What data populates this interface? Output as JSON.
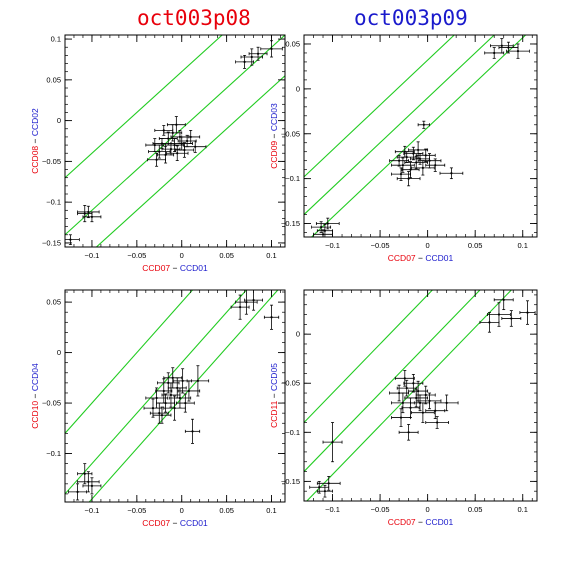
{
  "colors": {
    "red": "#e8000b",
    "blue": "#1a1acc",
    "green": "#22cc22",
    "ink": "#000000"
  },
  "titles": [
    {
      "text": "oct003p08",
      "color": "#e8000b"
    },
    {
      "text": "oct003p09",
      "color": "#1a1acc"
    }
  ],
  "chart_data": [
    {
      "type": "scatter",
      "xlabel": {
        "a": "CCD07",
        "sep": "−",
        "b": "CCD01"
      },
      "ylabel": {
        "a": "CCD08",
        "sep": "−",
        "b": "CCD02"
      },
      "xlim": [
        -0.13,
        0.115
      ],
      "ylim": [
        -0.155,
        0.105
      ],
      "xticks": [
        -0.1,
        -0.05,
        0,
        0.05,
        0.1
      ],
      "xtick_labels": [
        "−0.1",
        "−0.05",
        "0",
        "0.05",
        "0.1"
      ],
      "yticks": [
        -0.15,
        -0.1,
        -0.05,
        0,
        0.05,
        0.1
      ],
      "ytick_labels": [
        "−0.15",
        "−0.1",
        "−0.05",
        "0",
        "0.05",
        "0.1"
      ],
      "lines": [
        {
          "slope": 1,
          "intercept": 0.06
        },
        {
          "slope": 1,
          "intercept": -0.01
        },
        {
          "slope": 1,
          "intercept": -0.06
        }
      ],
      "points": [
        [
          -0.124,
          -0.146,
          0.01,
          0.006
        ],
        [
          -0.108,
          -0.114,
          0.008,
          0.01
        ],
        [
          -0.104,
          -0.112,
          0.012,
          0.007
        ],
        [
          -0.1,
          -0.118,
          0.01,
          0.006
        ],
        [
          -0.03,
          -0.03,
          0.01,
          0.008
        ],
        [
          -0.025,
          -0.038,
          0.012,
          0.008
        ],
        [
          -0.022,
          -0.028,
          0.01,
          0.006
        ],
        [
          -0.018,
          -0.042,
          0.009,
          0.01
        ],
        [
          -0.015,
          -0.022,
          0.01,
          0.008
        ],
        [
          -0.012,
          -0.035,
          0.01,
          0.007
        ],
        [
          -0.01,
          -0.015,
          0.01,
          0.01
        ],
        [
          -0.008,
          -0.03,
          0.01,
          0.008
        ],
        [
          -0.005,
          -0.04,
          0.012,
          0.009
        ],
        [
          -0.002,
          -0.02,
          0.01,
          0.008
        ],
        [
          0,
          -0.028,
          0.012,
          0.008
        ],
        [
          0.003,
          -0.036,
          0.01,
          0.009
        ],
        [
          0.006,
          -0.025,
          0.01,
          0.007
        ],
        [
          -0.02,
          -0.012,
          0.01,
          0.006
        ],
        [
          -0.006,
          -0.005,
          0.01,
          0.01
        ],
        [
          0.01,
          -0.02,
          0.01,
          0.008
        ],
        [
          -0.028,
          -0.048,
          0.01,
          0.008
        ],
        [
          0.015,
          -0.032,
          0.012,
          0.007
        ],
        [
          0.07,
          0.072,
          0.01,
          0.008
        ],
        [
          0.078,
          0.078,
          0.012,
          0.01
        ],
        [
          0.085,
          0.082,
          0.01,
          0.008
        ],
        [
          0.1,
          0.088,
          0.012,
          0.01
        ]
      ]
    },
    {
      "type": "scatter",
      "xlabel": {
        "a": "CCD07",
        "sep": "−",
        "b": "CCD01"
      },
      "ylabel": {
        "a": "CCD09",
        "sep": "−",
        "b": "CCD03"
      },
      "xlim": [
        -0.13,
        0.115
      ],
      "ylim": [
        -0.165,
        0.06
      ],
      "xticks": [
        -0.1,
        -0.05,
        0,
        0.05,
        0.1
      ],
      "xtick_labels": [
        "−0.1",
        "−0.05",
        "0",
        "0.05",
        "0.1"
      ],
      "yticks": [
        -0.15,
        -0.1,
        -0.05,
        0,
        0.05
      ],
      "ytick_labels": [
        "−0.15",
        "−0.1",
        "−0.05",
        "0",
        "0.05"
      ],
      "lines": [
        {
          "slope": 1,
          "intercept": 0.032
        },
        {
          "slope": 1,
          "intercept": -0.01
        },
        {
          "slope": 1,
          "intercept": -0.043
        }
      ],
      "points": [
        [
          -0.112,
          -0.154,
          0.01,
          0.006
        ],
        [
          -0.108,
          -0.158,
          0.008,
          0.007
        ],
        [
          -0.105,
          -0.15,
          0.012,
          0.006
        ],
        [
          -0.11,
          -0.162,
          0.01,
          0.005
        ],
        [
          -0.03,
          -0.08,
          0.01,
          0.006
        ],
        [
          -0.026,
          -0.085,
          0.012,
          0.008
        ],
        [
          -0.022,
          -0.076,
          0.01,
          0.006
        ],
        [
          -0.018,
          -0.09,
          0.009,
          0.009
        ],
        [
          -0.015,
          -0.072,
          0.01,
          0.007
        ],
        [
          -0.012,
          -0.082,
          0.012,
          0.007
        ],
        [
          -0.01,
          -0.068,
          0.01,
          0.009
        ],
        [
          -0.008,
          -0.078,
          0.01,
          0.006
        ],
        [
          -0.005,
          -0.088,
          0.012,
          0.008
        ],
        [
          -0.002,
          -0.074,
          0.01,
          0.007
        ],
        [
          0.002,
          -0.08,
          0.012,
          0.008
        ],
        [
          -0.028,
          -0.095,
          0.01,
          0.007
        ],
        [
          -0.02,
          -0.1,
          0.012,
          0.008
        ],
        [
          0.008,
          -0.085,
          0.01,
          0.007
        ],
        [
          0.025,
          -0.094,
          0.012,
          0.006
        ],
        [
          -0.004,
          -0.04,
          0.006,
          0.004
        ],
        [
          -0.024,
          -0.07,
          0.01,
          0.006
        ],
        [
          0.07,
          0.04,
          0.01,
          0.006
        ],
        [
          0.078,
          0.048,
          0.012,
          0.008
        ],
        [
          0.085,
          0.046,
          0.01,
          0.006
        ],
        [
          0.095,
          0.042,
          0.012,
          0.008
        ]
      ]
    },
    {
      "type": "scatter",
      "xlabel": {
        "a": "CCD07",
        "sep": "−",
        "b": "CCD01"
      },
      "ylabel": {
        "a": "CCD10",
        "sep": "−",
        "b": "CCD04"
      },
      "xlim": [
        -0.13,
        0.115
      ],
      "ylim": [
        -0.148,
        0.062
      ],
      "xticks": [
        -0.1,
        -0.05,
        0,
        0.05,
        0.1
      ],
      "xtick_labels": [
        "−0.1",
        "−0.05",
        "0",
        "0.05",
        "0.1"
      ],
      "yticks": [
        -0.1,
        -0.05,
        0,
        0.05
      ],
      "ytick_labels": [
        "−0.1",
        "−0.05",
        "0",
        "0.05"
      ],
      "lines": [
        {
          "slope": 1,
          "intercept": 0.05
        },
        {
          "slope": 1,
          "intercept": -0.01
        },
        {
          "slope": 1,
          "intercept": -0.045
        }
      ],
      "points": [
        [
          -0.116,
          -0.138,
          0.01,
          0.008
        ],
        [
          -0.108,
          -0.12,
          0.008,
          0.01
        ],
        [
          -0.104,
          -0.128,
          0.012,
          0.01
        ],
        [
          -0.1,
          -0.132,
          0.01,
          0.008
        ],
        [
          -0.032,
          -0.055,
          0.01,
          0.009
        ],
        [
          -0.028,
          -0.045,
          0.012,
          0.01
        ],
        [
          -0.025,
          -0.06,
          0.01,
          0.01
        ],
        [
          -0.02,
          -0.038,
          0.009,
          0.012
        ],
        [
          -0.018,
          -0.05,
          0.01,
          0.009
        ],
        [
          -0.015,
          -0.03,
          0.012,
          0.01
        ],
        [
          -0.012,
          -0.042,
          0.01,
          0.012
        ],
        [
          -0.01,
          -0.025,
          0.01,
          0.01
        ],
        [
          -0.008,
          -0.055,
          0.012,
          0.012
        ],
        [
          -0.005,
          -0.035,
          0.01,
          0.01
        ],
        [
          -0.002,
          -0.045,
          0.012,
          0.01
        ],
        [
          0.001,
          -0.028,
          0.01,
          0.012
        ],
        [
          0.004,
          -0.05,
          0.01,
          0.009
        ],
        [
          -0.022,
          -0.062,
          0.01,
          0.008
        ],
        [
          0.008,
          -0.038,
          0.012,
          0.01
        ],
        [
          0.012,
          -0.078,
          0.008,
          0.012
        ],
        [
          0.018,
          -0.028,
          0.012,
          0.015
        ],
        [
          0.065,
          0.045,
          0.01,
          0.012
        ],
        [
          0.072,
          0.05,
          0.012,
          0.012
        ],
        [
          0.08,
          0.052,
          0.01,
          0.01
        ],
        [
          0.1,
          0.035,
          0.008,
          0.012
        ]
      ]
    },
    {
      "type": "scatter",
      "xlabel": {
        "a": "CCD07",
        "sep": "−",
        "b": "CCD01"
      },
      "ylabel": {
        "a": "CCD11",
        "sep": "−",
        "b": "CCD05"
      },
      "xlim": [
        -0.13,
        0.115
      ],
      "ylim": [
        -0.17,
        0.045
      ],
      "xticks": [
        -0.1,
        -0.05,
        0,
        0.05,
        0.1
      ],
      "xtick_labels": [
        "−0.1",
        "−0.05",
        "0",
        "0.05",
        "0.1"
      ],
      "yticks": [
        -0.15,
        -0.1,
        -0.05,
        0
      ],
      "ytick_labels": [
        "−0.15",
        "−0.1",
        "−0.05",
        "0"
      ],
      "lines": [
        {
          "slope": 1,
          "intercept": 0.04
        },
        {
          "slope": 1,
          "intercept": -0.01
        },
        {
          "slope": 1,
          "intercept": -0.043
        }
      ],
      "points": [
        [
          -0.114,
          -0.156,
          0.01,
          0.006
        ],
        [
          -0.108,
          -0.16,
          0.008,
          0.006
        ],
        [
          -0.104,
          -0.152,
          0.012,
          0.007
        ],
        [
          -0.1,
          -0.11,
          0.01,
          0.02
        ],
        [
          -0.03,
          -0.06,
          0.01,
          0.008
        ],
        [
          -0.026,
          -0.07,
          0.012,
          0.01
        ],
        [
          -0.022,
          -0.055,
          0.01,
          0.008
        ],
        [
          -0.018,
          -0.075,
          0.009,
          0.01
        ],
        [
          -0.015,
          -0.05,
          0.01,
          0.009
        ],
        [
          -0.012,
          -0.065,
          0.012,
          0.009
        ],
        [
          -0.01,
          -0.058,
          0.01,
          0.01
        ],
        [
          -0.008,
          -0.07,
          0.01,
          0.008
        ],
        [
          -0.005,
          -0.08,
          0.012,
          0.01
        ],
        [
          -0.002,
          -0.062,
          0.01,
          0.009
        ],
        [
          0.002,
          -0.068,
          0.012,
          0.008
        ],
        [
          -0.028,
          -0.085,
          0.01,
          0.009
        ],
        [
          -0.02,
          -0.1,
          0.01,
          0.008
        ],
        [
          0.008,
          -0.078,
          0.01,
          0.008
        ],
        [
          0.01,
          -0.09,
          0.012,
          0.006
        ],
        [
          0.02,
          -0.07,
          0.012,
          0.008
        ],
        [
          -0.024,
          -0.045,
          0.01,
          0.008
        ],
        [
          0.065,
          0.012,
          0.01,
          0.01
        ],
        [
          0.075,
          0.02,
          0.012,
          0.012
        ],
        [
          0.08,
          0.035,
          0.01,
          0.01
        ],
        [
          0.088,
          0.016,
          0.01,
          0.008
        ],
        [
          0.105,
          0.022,
          0.008,
          0.012
        ]
      ]
    }
  ]
}
